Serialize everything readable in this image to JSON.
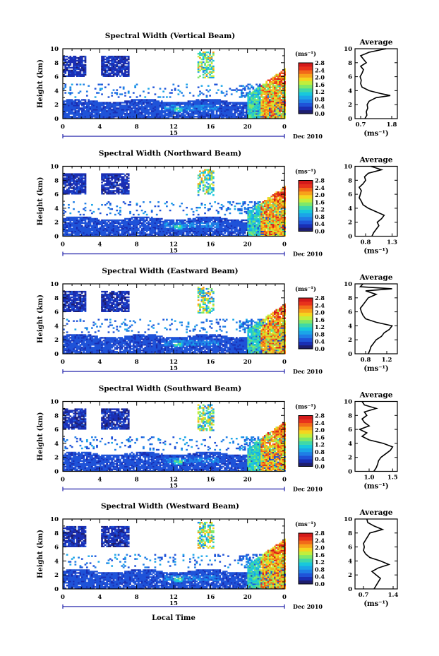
{
  "figure": {
    "x_axis_label": "Local Time",
    "date_label": "Dec 2010",
    "date_day": "15",
    "y_axis_label": "Height (km)",
    "units_label": "(ms⁻¹)",
    "average_title": "Average"
  },
  "colormap": [
    "#1e1e6e",
    "#1a2fb4",
    "#1f53d8",
    "#1f7ee6",
    "#1ba5e8",
    "#18c8dc",
    "#3fd8a8",
    "#7ee86a",
    "#c2ee3c",
    "#f4d61f",
    "#f7a21a",
    "#f26a19",
    "#e8321c",
    "#d41a1a"
  ],
  "chart_data": [
    {
      "type": "heatmap",
      "title": "Spectral Width (Vertical Beam)",
      "xlabel": "Local Time",
      "ylabel": "Height (km)",
      "x_ticks": [
        "0",
        "4",
        "8",
        "12",
        "16",
        "20",
        "0"
      ],
      "xlim": [
        0,
        24
      ],
      "y_ticks": [
        "0",
        "2",
        "4",
        "6",
        "8",
        "10"
      ],
      "ylim": [
        0,
        10
      ],
      "colorbar": {
        "units": "(ms⁻¹)",
        "ticks": [
          "0.0",
          "0.4",
          "0.8",
          "1.2",
          "1.6",
          "2.0",
          "2.4",
          "2.8"
        ],
        "range": [
          0,
          2.8
        ]
      },
      "average": {
        "title": "Average",
        "xlabel": "(ms⁻¹)",
        "x_ticks": [
          "0.7",
          "1.8"
        ],
        "xlim": [
          0.5,
          2.0
        ],
        "height": [
          0,
          0.5,
          1,
          1.5,
          2,
          2.5,
          3,
          3.3,
          3.6,
          4,
          4.5,
          5,
          5.5,
          6,
          6.5,
          7,
          7.5,
          8,
          8.5,
          9,
          9.5,
          10
        ],
        "value": [
          0.85,
          0.92,
          0.9,
          0.95,
          0.93,
          1.0,
          1.25,
          1.75,
          1.4,
          1.0,
          0.75,
          0.7,
          0.72,
          0.68,
          0.75,
          0.8,
          0.7,
          0.9,
          0.8,
          0.7,
          1.0,
          1.6
        ]
      }
    },
    {
      "type": "heatmap",
      "title": "Spectral Width (Northward Beam)",
      "xlabel": "Local Time",
      "ylabel": "Height (km)",
      "x_ticks": [
        "0",
        "4",
        "8",
        "12",
        "16",
        "20",
        "0"
      ],
      "xlim": [
        0,
        24
      ],
      "y_ticks": [
        "0",
        "2",
        "4",
        "6",
        "8",
        "10"
      ],
      "ylim": [
        0,
        10
      ],
      "colorbar": {
        "units": "(ms⁻¹)",
        "ticks": [
          "0.0",
          "0.4",
          "0.8",
          "1.2",
          "1.6",
          "2.0",
          "2.4",
          "2.8"
        ],
        "range": [
          0,
          2.8
        ]
      },
      "average": {
        "title": "Average",
        "xlabel": "(ms⁻¹)",
        "x_ticks": [
          "0.8",
          "1.3"
        ],
        "xlim": [
          0.6,
          1.4
        ],
        "height": [
          0,
          0.5,
          1,
          1.5,
          2,
          2.5,
          3,
          3.5,
          4,
          4.5,
          5,
          5.5,
          6,
          6.5,
          7,
          7.5,
          8,
          8.5,
          9,
          9.5,
          10
        ],
        "value": [
          0.92,
          0.95,
          1.0,
          1.05,
          1.02,
          1.1,
          1.15,
          1.0,
          0.85,
          0.75,
          0.72,
          0.68,
          0.7,
          0.72,
          0.68,
          0.75,
          0.8,
          0.78,
          0.85,
          1.1,
          0.9
        ]
      }
    },
    {
      "type": "heatmap",
      "title": "Spectral Width (Eastward Beam)",
      "xlabel": "Local Time",
      "ylabel": "Height (km)",
      "x_ticks": [
        "0",
        "4",
        "8",
        "12",
        "16",
        "20",
        "0"
      ],
      "xlim": [
        0,
        24
      ],
      "y_ticks": [
        "0",
        "2",
        "4",
        "6",
        "8",
        "10"
      ],
      "ylim": [
        0,
        10
      ],
      "colorbar": {
        "units": "(ms⁻¹)",
        "ticks": [
          "0.0",
          "0.4",
          "0.8",
          "1.2",
          "1.6",
          "2.0",
          "2.4",
          "2.8"
        ],
        "range": [
          0,
          2.8
        ]
      },
      "average": {
        "title": "Average",
        "xlabel": "(ms⁻¹)",
        "x_ticks": [
          "0.8",
          "1.2"
        ],
        "xlim": [
          0.6,
          1.4
        ],
        "height": [
          0,
          0.5,
          1,
          1.5,
          2,
          2.5,
          3,
          3.5,
          4,
          4.5,
          5,
          5.5,
          6,
          6.5,
          7,
          7.5,
          8,
          8.5,
          9,
          9.3,
          9.6,
          10
        ],
        "value": [
          0.85,
          0.88,
          0.9,
          0.95,
          1.0,
          1.1,
          1.15,
          1.25,
          1.3,
          1.0,
          0.8,
          0.75,
          0.72,
          0.7,
          0.75,
          0.8,
          0.85,
          1.0,
          0.8,
          1.3,
          0.7,
          0.75
        ]
      }
    },
    {
      "type": "heatmap",
      "title": "Spectral Width (Southward Beam)",
      "xlabel": "Local Time",
      "ylabel": "Height (km)",
      "x_ticks": [
        "0",
        "4",
        "8",
        "12",
        "16",
        "20",
        "0"
      ],
      "xlim": [
        0,
        24
      ],
      "y_ticks": [
        "0",
        "2",
        "4",
        "6",
        "8",
        "10"
      ],
      "ylim": [
        0,
        10
      ],
      "colorbar": {
        "units": "(ms⁻¹)",
        "ticks": [
          "0.0",
          "0.4",
          "0.8",
          "1.2",
          "1.6",
          "2.0",
          "2.4",
          "2.8"
        ],
        "range": [
          0,
          2.8
        ]
      },
      "average": {
        "title": "Average",
        "xlabel": "(ms⁻¹)",
        "x_ticks": [
          "1.0",
          "1.5"
        ],
        "xlim": [
          0.7,
          1.6
        ],
        "height": [
          0,
          0.5,
          1,
          1.5,
          2,
          2.5,
          3,
          3.5,
          4,
          4.5,
          5,
          5.5,
          6,
          6.5,
          7,
          7.5,
          8,
          8.5,
          9,
          9.5,
          10
        ],
        "value": [
          1.1,
          1.15,
          1.18,
          1.2,
          1.25,
          1.35,
          1.45,
          1.5,
          1.3,
          1.0,
          0.85,
          0.95,
          0.8,
          1.0,
          0.9,
          0.85,
          0.95,
          0.9,
          1.15,
          0.9,
          0.85
        ]
      }
    },
    {
      "type": "heatmap",
      "title": "Spectral Width (Westward Beam)",
      "xlabel": "Local Time",
      "ylabel": "Height (km)",
      "x_ticks": [
        "0",
        "4",
        "8",
        "12",
        "16",
        "20",
        "0"
      ],
      "xlim": [
        0,
        24
      ],
      "y_ticks": [
        "0",
        "2",
        "4",
        "6",
        "8",
        "10"
      ],
      "ylim": [
        0,
        10
      ],
      "colorbar": {
        "units": "(ms⁻¹)",
        "ticks": [
          "0.0",
          "0.4",
          "0.8",
          "1.2",
          "1.6",
          "2.0",
          "2.4",
          "2.8"
        ],
        "range": [
          0,
          2.8
        ]
      },
      "average": {
        "title": "Average",
        "xlabel": "(ms⁻¹)",
        "x_ticks": [
          "0.7",
          "1.4"
        ],
        "xlim": [
          0.5,
          1.5
        ],
        "height": [
          0,
          0.5,
          1,
          1.5,
          2,
          2.5,
          3,
          3.5,
          4,
          4.5,
          5,
          5.5,
          6,
          6.5,
          7,
          7.5,
          8,
          8.5,
          9,
          9.5,
          10
        ],
        "value": [
          0.95,
          1.0,
          1.05,
          1.1,
          1.0,
          0.9,
          1.05,
          1.3,
          1.1,
          0.85,
          0.75,
          0.7,
          0.72,
          0.7,
          0.75,
          0.8,
          0.85,
          1.15,
          0.95,
          0.8,
          0.78
        ]
      }
    }
  ]
}
